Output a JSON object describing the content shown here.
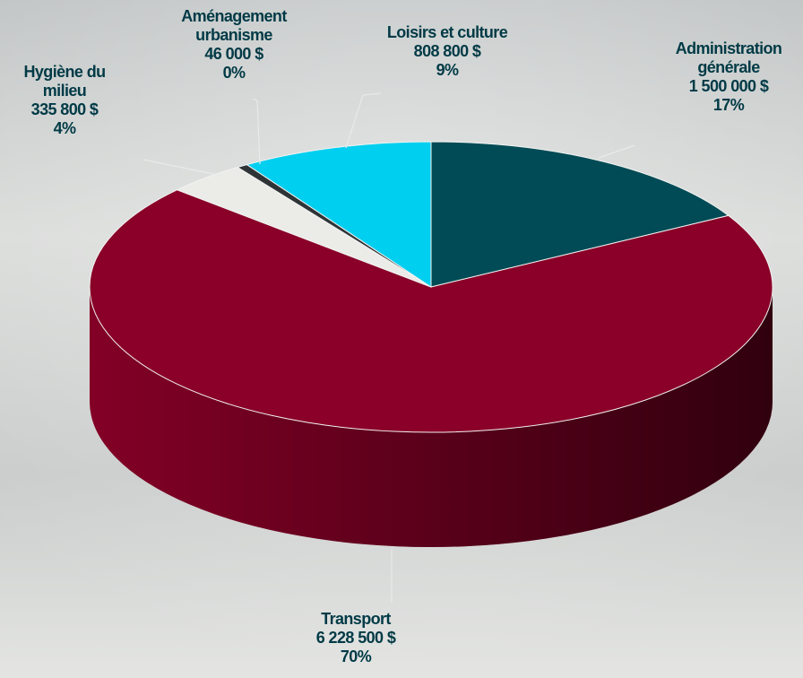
{
  "chart_data": {
    "type": "pie",
    "categories": [
      "Administration générale",
      "Transport",
      "Hygiène du milieu",
      "Aménagement urbanisme",
      "Loisirs et culture"
    ],
    "values": [
      1500000,
      6228500,
      335800,
      46000,
      808800
    ],
    "value_labels": [
      "1 500 000 $",
      "6 228 500 $",
      "335 800 $",
      "46 000 $",
      "808 800 $"
    ],
    "percents": [
      17,
      70,
      4,
      0,
      9
    ],
    "percent_labels": [
      "17%",
      "70%",
      "4%",
      "0%",
      "9%"
    ],
    "colors": [
      "#004b55",
      "#8a0028",
      "#ebebe8",
      "#2e3436",
      "#00cfef"
    ]
  }
}
